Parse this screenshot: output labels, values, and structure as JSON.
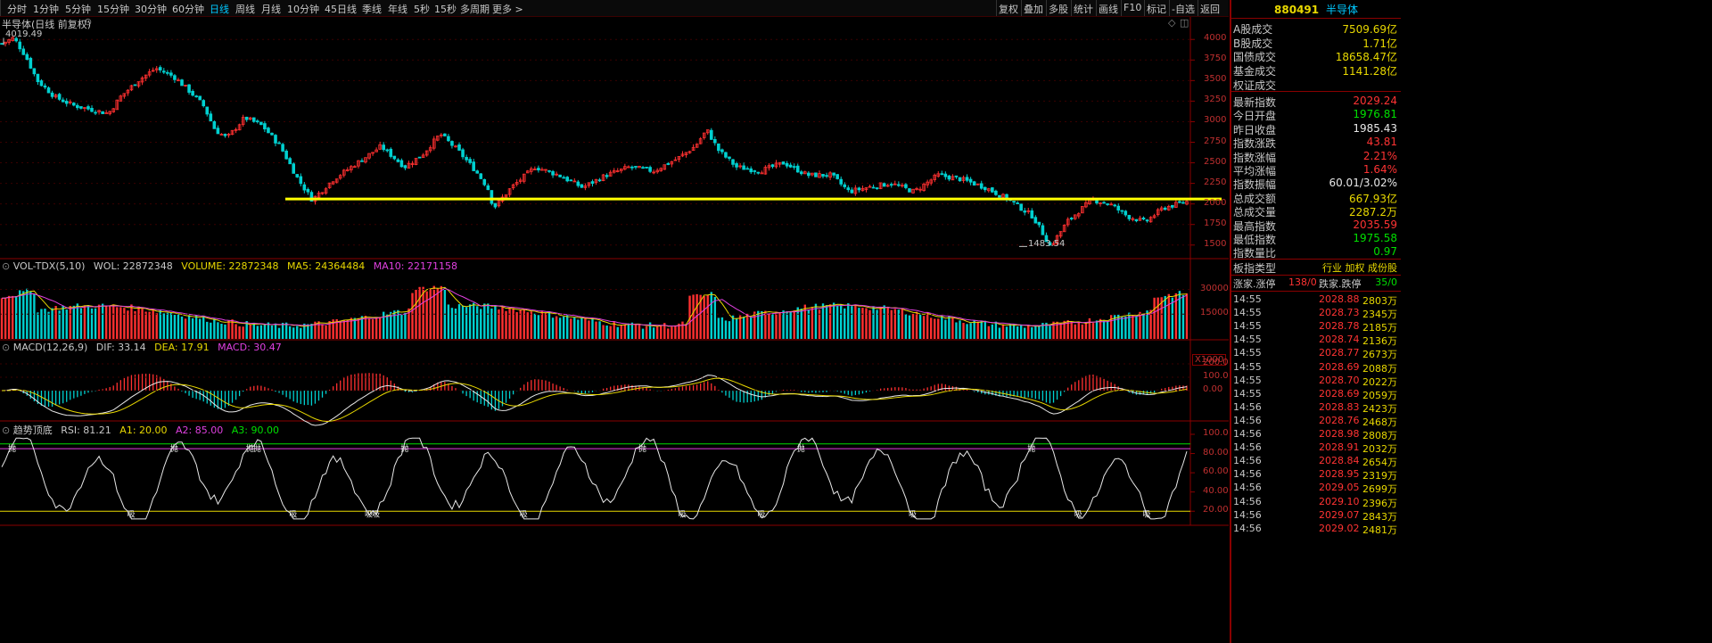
{
  "toolbar": {
    "periods": [
      {
        "label": "分时",
        "active": false
      },
      {
        "label": "1分钟",
        "active": false
      },
      {
        "label": "5分钟",
        "active": false
      },
      {
        "label": "15分钟",
        "active": false
      },
      {
        "label": "30分钟",
        "active": false
      },
      {
        "label": "60分钟",
        "active": false
      },
      {
        "label": "日线",
        "active": true
      },
      {
        "label": "周线",
        "active": false
      },
      {
        "label": "月线",
        "active": false
      },
      {
        "label": "10分钟",
        "active": false
      },
      {
        "label": "45日线",
        "active": false
      },
      {
        "label": "季线",
        "active": false
      },
      {
        "label": "年线",
        "active": false
      },
      {
        "label": "5秒",
        "active": false
      },
      {
        "label": "15秒",
        "active": false
      },
      {
        "label": "多周期",
        "active": false
      },
      {
        "label": "更多 >",
        "active": false
      }
    ],
    "right_buttons": [
      "复权",
      "叠加",
      "多股",
      "统计",
      "画线",
      "F10",
      "标记",
      "-自选",
      "返回"
    ]
  },
  "main_chart": {
    "title": "半导体(日线 前复权)",
    "high_label": "4019.49",
    "low_label": "1483.54",
    "y_ticks": [
      "4000",
      "3750",
      "3500",
      "3250",
      "3000",
      "2750",
      "2500",
      "2250",
      "2000",
      "1750",
      "1500"
    ]
  },
  "volume_panel": {
    "header": "VOL-TDX(5,10)",
    "wol": "WOL: 22872348",
    "volume": "VOLUME: 22872348",
    "ma5": "MA5: 24364484",
    "ma10": "MA10: 22171158",
    "y_ticks": [
      "30000",
      "15000"
    ],
    "unit": "X1000"
  },
  "macd_panel": {
    "header": "MACD(12,26,9)",
    "dif": "DIF: 33.14",
    "dea": "DEA: 17.91",
    "macd": "MACD: 30.47",
    "y_ticks": [
      "200.0",
      "100.0",
      "0.00"
    ]
  },
  "rsi_panel": {
    "header": "趋势顶底",
    "rsi": "RSI: 81.21",
    "a1": "A1: 20.00",
    "a2": "A2: 85.00",
    "a3": "A3: 90.00",
    "y_ticks": [
      "100.0",
      "80.00",
      "60.00",
      "40.00",
      "20.00"
    ],
    "top_mark": "抛",
    "bottom_mark": "吸"
  },
  "panel": {
    "code": "880491",
    "name": "半导体",
    "turnover": [
      {
        "label": "A股成交",
        "value": "7509.69亿"
      },
      {
        "label": "B股成交",
        "value": "1.71亿"
      },
      {
        "label": "国债成交",
        "value": "18658.47亿"
      },
      {
        "label": "基金成交",
        "value": "1141.28亿"
      },
      {
        "label": "权证成交",
        "value": ""
      }
    ],
    "stats": [
      {
        "label": "最新指数",
        "value": "2029.24",
        "color": "#ff3333"
      },
      {
        "label": "今日开盘",
        "value": "1976.81",
        "color": "#00e000"
      },
      {
        "label": "昨日收盘",
        "value": "1985.43",
        "color": "#e8e8e8"
      },
      {
        "label": "指数涨跌",
        "value": "43.81",
        "color": "#ff3333"
      },
      {
        "label": "指数涨幅",
        "value": "2.21%",
        "color": "#ff3333"
      },
      {
        "label": "平均涨幅",
        "value": "1.64%",
        "color": "#ff3333"
      },
      {
        "label": "指数振幅",
        "value": "60.01/3.02%",
        "color": "#e8e8e8"
      },
      {
        "label": "总成交额",
        "value": "667.93亿",
        "color": "#e8d800"
      },
      {
        "label": "总成交量",
        "value": "2287.2万",
        "color": "#e8d800"
      },
      {
        "label": "最高指数",
        "value": "2035.59",
        "color": "#ff3333"
      },
      {
        "label": "最低指数",
        "value": "1975.58",
        "color": "#00e000"
      },
      {
        "label": "指数量比",
        "value": "0.97",
        "color": "#00e000"
      }
    ],
    "type_label": "板指类型",
    "type_value": "行业 加权 成份股",
    "updown_label1": "涨家.涨停",
    "updown_value1": "138/0",
    "updown_label2": "跌家.跌停",
    "updown_value2": "35/0",
    "ticks": [
      {
        "t": "14:55",
        "p": "2028.88",
        "v": "2803万"
      },
      {
        "t": "14:55",
        "p": "2028.73",
        "v": "2345万"
      },
      {
        "t": "14:55",
        "p": "2028.78",
        "v": "2185万"
      },
      {
        "t": "14:55",
        "p": "2028.74",
        "v": "2136万"
      },
      {
        "t": "14:55",
        "p": "2028.77",
        "v": "2673万"
      },
      {
        "t": "14:55",
        "p": "2028.69",
        "v": "2088万"
      },
      {
        "t": "14:55",
        "p": "2028.70",
        "v": "2022万"
      },
      {
        "t": "14:55",
        "p": "2028.69",
        "v": "2059万"
      },
      {
        "t": "14:56",
        "p": "2028.83",
        "v": "2423万"
      },
      {
        "t": "14:56",
        "p": "2028.76",
        "v": "2468万"
      },
      {
        "t": "14:56",
        "p": "2028.98",
        "v": "2808万"
      },
      {
        "t": "14:56",
        "p": "2028.91",
        "v": "2032万"
      },
      {
        "t": "14:56",
        "p": "2028.84",
        "v": "2654万"
      },
      {
        "t": "14:56",
        "p": "2028.95",
        "v": "2319万"
      },
      {
        "t": "14:56",
        "p": "2029.05",
        "v": "2699万"
      },
      {
        "t": "14:56",
        "p": "2029.10",
        "v": "2396万"
      },
      {
        "t": "14:56",
        "p": "2029.07",
        "v": "2843万"
      },
      {
        "t": "14:56",
        "p": "2029.02",
        "v": "2481万"
      }
    ]
  },
  "chart_data": {
    "type": "line",
    "title": "半导体(日线 前复权)",
    "ylim": [
      1400,
      4100
    ],
    "support_level": 2060,
    "close_path": [
      [
        0,
        3950
      ],
      [
        0.01,
        4019
      ],
      [
        0.02,
        3800
      ],
      [
        0.03,
        3500
      ],
      [
        0.045,
        3300
      ],
      [
        0.06,
        3200
      ],
      [
        0.075,
        3150
      ],
      [
        0.09,
        3100
      ],
      [
        0.1,
        3300
      ],
      [
        0.115,
        3500
      ],
      [
        0.13,
        3650
      ],
      [
        0.145,
        3550
      ],
      [
        0.16,
        3350
      ],
      [
        0.17,
        3200
      ],
      [
        0.18,
        2900
      ],
      [
        0.19,
        2800
      ],
      [
        0.205,
        3050
      ],
      [
        0.22,
        2950
      ],
      [
        0.235,
        2700
      ],
      [
        0.25,
        2300
      ],
      [
        0.262,
        2050
      ],
      [
        0.28,
        2300
      ],
      [
        0.3,
        2500
      ],
      [
        0.32,
        2700
      ],
      [
        0.34,
        2450
      ],
      [
        0.355,
        2600
      ],
      [
        0.37,
        2850
      ],
      [
        0.385,
        2650
      ],
      [
        0.4,
        2400
      ],
      [
        0.41,
        2200
      ],
      [
        0.415,
        1950
      ],
      [
        0.43,
        2200
      ],
      [
        0.45,
        2450
      ],
      [
        0.47,
        2350
      ],
      [
        0.49,
        2200
      ],
      [
        0.51,
        2350
      ],
      [
        0.53,
        2450
      ],
      [
        0.55,
        2400
      ],
      [
        0.57,
        2550
      ],
      [
        0.585,
        2700
      ],
      [
        0.595,
        2900
      ],
      [
        0.605,
        2650
      ],
      [
        0.62,
        2450
      ],
      [
        0.64,
        2400
      ],
      [
        0.66,
        2500
      ],
      [
        0.68,
        2350
      ],
      [
        0.7,
        2350
      ],
      [
        0.715,
        2150
      ],
      [
        0.73,
        2200
      ],
      [
        0.75,
        2250
      ],
      [
        0.77,
        2150
      ],
      [
        0.79,
        2350
      ],
      [
        0.81,
        2300
      ],
      [
        0.83,
        2200
      ],
      [
        0.85,
        2050
      ],
      [
        0.87,
        1850
      ],
      [
        0.885,
        1483
      ],
      [
        0.9,
        1800
      ],
      [
        0.92,
        2050
      ],
      [
        0.935,
        2000
      ],
      [
        0.95,
        1850
      ],
      [
        0.965,
        1780
      ],
      [
        0.98,
        1950
      ],
      [
        1.0,
        2029
      ]
    ],
    "rsi_overbought": 85,
    "rsi_oversold": 20,
    "rsi_last": 81.21,
    "macd_last": {
      "dif": 33.14,
      "dea": 17.91,
      "macd": 30.47
    },
    "volume_last": 22872348
  }
}
